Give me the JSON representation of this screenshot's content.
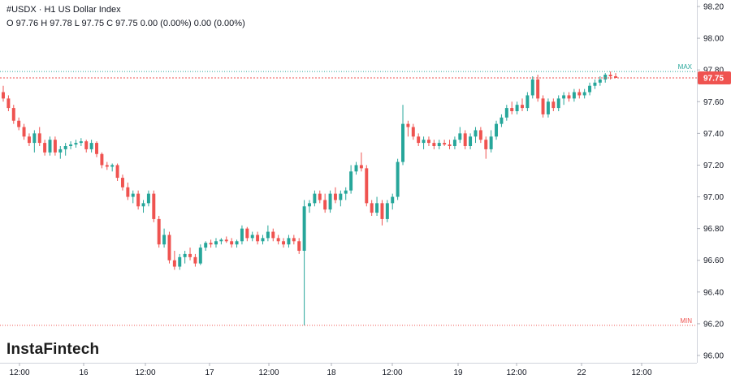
{
  "header": {
    "title": "#USDX · H1 US Dollar Index",
    "ohlc": "O 97.76 H 97.78 L 97.75 C 97.75 0.00 (0.00%) 0.00 (0.00%)"
  },
  "brand": "InstaFintech",
  "colors": {
    "up": "#26a69a",
    "down": "#ef5350",
    "max_line": "#26a69a",
    "min_line": "#ef5350",
    "price_tag": "#ef5350"
  },
  "chart_data": {
    "type": "candlestick",
    "ylim": [
      96.0,
      98.2
    ],
    "y_ticks": [
      "98.20",
      "98.00",
      "97.80",
      "97.60",
      "97.40",
      "97.20",
      "97.00",
      "96.80",
      "96.60",
      "96.40",
      "96.20",
      "96.00"
    ],
    "x_ticks": [
      "12:00",
      "16",
      "12:00",
      "17",
      "12:00",
      "18",
      "12:00",
      "19",
      "12:00",
      "22",
      "12:00"
    ],
    "max_label": "MAX",
    "min_label": "MIN",
    "max_value": 97.79,
    "min_value": 96.19,
    "last_price": "97.75",
    "candles": [
      [
        97.66,
        97.7,
        97.6,
        97.62
      ],
      [
        97.62,
        97.64,
        97.54,
        97.56
      ],
      [
        97.56,
        97.58,
        97.46,
        97.48
      ],
      [
        97.48,
        97.5,
        97.42,
        97.44
      ],
      [
        97.44,
        97.46,
        97.36,
        97.38
      ],
      [
        97.38,
        97.4,
        97.32,
        97.34
      ],
      [
        97.34,
        97.42,
        97.28,
        97.4
      ],
      [
        97.4,
        97.44,
        97.32,
        97.34
      ],
      [
        97.34,
        97.36,
        97.26,
        97.28
      ],
      [
        97.28,
        97.38,
        97.26,
        97.36
      ],
      [
        97.36,
        97.38,
        97.26,
        97.28
      ],
      [
        97.28,
        97.32,
        97.24,
        97.3
      ],
      [
        97.3,
        97.34,
        97.26,
        97.32
      ],
      [
        97.32,
        97.35,
        97.3,
        97.33
      ],
      [
        97.33,
        97.36,
        97.31,
        97.34
      ],
      [
        97.34,
        97.37,
        97.32,
        97.35
      ],
      [
        97.35,
        97.36,
        97.28,
        97.3
      ],
      [
        97.3,
        97.36,
        97.28,
        97.34
      ],
      [
        97.34,
        97.35,
        97.25,
        97.27
      ],
      [
        97.27,
        97.28,
        97.18,
        97.2
      ],
      [
        97.2,
        97.22,
        97.17,
        97.19
      ],
      [
        97.19,
        97.21,
        97.16,
        97.2
      ],
      [
        97.2,
        97.21,
        97.1,
        97.12
      ],
      [
        97.12,
        97.14,
        97.04,
        97.06
      ],
      [
        97.06,
        97.09,
        96.98,
        97.0
      ],
      [
        97.0,
        97.04,
        96.96,
        97.02
      ],
      [
        97.02,
        97.04,
        96.92,
        96.94
      ],
      [
        96.94,
        96.98,
        96.9,
        96.96
      ],
      [
        96.96,
        97.04,
        96.94,
        97.02
      ],
      [
        97.02,
        97.04,
        96.84,
        96.86
      ],
      [
        96.86,
        96.88,
        96.68,
        96.7
      ],
      [
        96.7,
        96.8,
        96.68,
        96.76
      ],
      [
        96.76,
        96.78,
        96.58,
        96.6
      ],
      [
        96.6,
        96.66,
        96.54,
        96.56
      ],
      [
        96.56,
        96.64,
        96.54,
        96.62
      ],
      [
        96.62,
        96.66,
        96.58,
        96.64
      ],
      [
        96.64,
        96.68,
        96.6,
        96.62
      ],
      [
        96.62,
        96.64,
        96.56,
        96.58
      ],
      [
        96.58,
        96.7,
        96.57,
        96.68
      ],
      [
        96.68,
        96.72,
        96.66,
        96.71
      ],
      [
        96.71,
        96.73,
        96.68,
        96.7
      ],
      [
        96.7,
        96.74,
        96.68,
        96.72
      ],
      [
        96.72,
        96.74,
        96.7,
        96.73
      ],
      [
        96.73,
        96.75,
        96.71,
        96.72
      ],
      [
        96.72,
        96.74,
        96.68,
        96.7
      ],
      [
        96.7,
        96.73,
        96.68,
        96.72
      ],
      [
        96.72,
        96.82,
        96.7,
        96.8
      ],
      [
        96.8,
        96.81,
        96.72,
        96.74
      ],
      [
        96.74,
        96.78,
        96.72,
        96.76
      ],
      [
        96.76,
        96.78,
        96.7,
        96.72
      ],
      [
        96.72,
        96.76,
        96.7,
        96.74
      ],
      [
        96.74,
        96.82,
        96.72,
        96.78
      ],
      [
        96.78,
        96.8,
        96.72,
        96.74
      ],
      [
        96.74,
        96.76,
        96.7,
        96.72
      ],
      [
        96.72,
        96.74,
        96.68,
        96.7
      ],
      [
        96.7,
        96.76,
        96.68,
        96.74
      ],
      [
        96.74,
        96.76,
        96.7,
        96.72
      ],
      [
        96.72,
        96.74,
        96.64,
        96.66
      ],
      [
        96.66,
        96.98,
        96.19,
        96.94
      ],
      [
        96.94,
        96.98,
        96.9,
        96.96
      ],
      [
        96.96,
        97.04,
        96.94,
        97.02
      ],
      [
        97.02,
        97.04,
        96.96,
        96.98
      ],
      [
        96.98,
        97.02,
        96.9,
        96.92
      ],
      [
        96.92,
        97.04,
        96.9,
        97.02
      ],
      [
        97.02,
        97.06,
        96.96,
        96.98
      ],
      [
        96.98,
        97.04,
        96.94,
        97.02
      ],
      [
        97.02,
        97.06,
        96.98,
        97.04
      ],
      [
        97.04,
        97.2,
        97.02,
        97.16
      ],
      [
        97.16,
        97.22,
        97.14,
        97.2
      ],
      [
        97.2,
        97.28,
        97.16,
        97.18
      ],
      [
        97.18,
        97.2,
        96.94,
        96.96
      ],
      [
        96.96,
        96.98,
        96.88,
        96.9
      ],
      [
        96.9,
        97.0,
        96.88,
        96.96
      ],
      [
        96.96,
        96.98,
        96.82,
        96.86
      ],
      [
        96.86,
        96.98,
        96.84,
        96.96
      ],
      [
        96.96,
        97.02,
        96.92,
        97.0
      ],
      [
        97.0,
        97.24,
        96.98,
        97.22
      ],
      [
        97.22,
        97.58,
        97.2,
        97.46
      ],
      [
        97.46,
        97.48,
        97.38,
        97.44
      ],
      [
        97.44,
        97.46,
        97.36,
        97.38
      ],
      [
        97.38,
        97.4,
        97.32,
        97.34
      ],
      [
        97.34,
        97.38,
        97.3,
        97.36
      ],
      [
        97.36,
        97.38,
        97.32,
        97.34
      ],
      [
        97.34,
        97.36,
        97.3,
        97.32
      ],
      [
        97.32,
        97.36,
        97.3,
        97.34
      ],
      [
        97.34,
        97.36,
        97.32,
        97.33
      ],
      [
        97.33,
        97.36,
        97.3,
        97.32
      ],
      [
        97.32,
        97.38,
        97.3,
        97.36
      ],
      [
        97.36,
        97.44,
        97.34,
        97.4
      ],
      [
        97.4,
        97.42,
        97.3,
        97.32
      ],
      [
        97.32,
        97.4,
        97.3,
        97.38
      ],
      [
        97.38,
        97.44,
        97.34,
        97.42
      ],
      [
        97.42,
        97.44,
        97.34,
        97.36
      ],
      [
        97.36,
        97.38,
        97.24,
        97.3
      ],
      [
        97.3,
        97.42,
        97.28,
        97.38
      ],
      [
        97.38,
        97.48,
        97.36,
        97.46
      ],
      [
        97.46,
        97.52,
        97.44,
        97.5
      ],
      [
        97.5,
        97.58,
        97.48,
        97.56
      ],
      [
        97.56,
        97.6,
        97.52,
        97.54
      ],
      [
        97.54,
        97.6,
        97.52,
        97.58
      ],
      [
        97.58,
        97.62,
        97.54,
        97.56
      ],
      [
        97.56,
        97.66,
        97.54,
        97.64
      ],
      [
        97.64,
        97.76,
        97.62,
        97.74
      ],
      [
        97.74,
        97.77,
        97.6,
        97.62
      ],
      [
        97.62,
        97.64,
        97.5,
        97.52
      ],
      [
        97.52,
        97.62,
        97.5,
        97.6
      ],
      [
        97.6,
        97.62,
        97.54,
        97.56
      ],
      [
        97.56,
        97.64,
        97.54,
        97.62
      ],
      [
        97.62,
        97.66,
        97.58,
        97.64
      ],
      [
        97.64,
        97.66,
        97.6,
        97.62
      ],
      [
        97.62,
        97.68,
        97.6,
        97.66
      ],
      [
        97.66,
        97.68,
        97.62,
        97.64
      ],
      [
        97.64,
        97.68,
        97.62,
        97.66
      ],
      [
        97.66,
        97.72,
        97.64,
        97.7
      ],
      [
        97.7,
        97.74,
        97.68,
        97.72
      ],
      [
        97.72,
        97.76,
        97.7,
        97.74
      ],
      [
        97.74,
        97.78,
        97.72,
        97.77
      ],
      [
        97.77,
        97.79,
        97.74,
        97.76
      ],
      [
        97.76,
        97.78,
        97.75,
        97.75
      ]
    ]
  }
}
